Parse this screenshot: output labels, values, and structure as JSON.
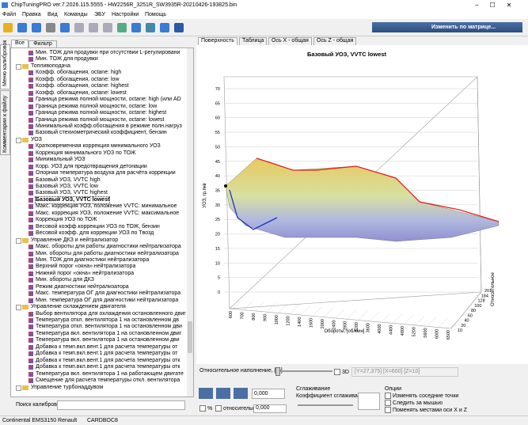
{
  "window": {
    "title": "ChipTuningPRO ver.7.2026.115.5555 - HW2256R_3251R_SW3935R-20210426-193825.bin"
  },
  "menu": [
    "Файл",
    "Правка",
    "Вид",
    "Команды",
    "ЭБУ",
    "Настройки",
    "Помощь"
  ],
  "toolbar": {
    "matrix_button": "Изменить по матрице..."
  },
  "left_panel": {
    "tabs": [
      "Все",
      "Фильтр"
    ],
    "side_tabs": [
      "Меню калибровок",
      "Комментарии к файлу"
    ],
    "tree": [
      {
        "items": [
          "Мин. ТОЖ для продувки при отсутствии L-регулировани",
          "Мин. ТОЖ для продувки"
        ]
      },
      {
        "label": "Топливоподача",
        "items": [
          "Коэфф. обогащения, octane: high",
          "Коэфф. обогащения, octane: low",
          "Коэфф. обогащения, octane: highest",
          "Коэфф. обогащения, octane: lowest",
          "Граница режима полной мощности, octane: high (или AD",
          "Граница режима полной мощности, octane: low",
          "Граница режима полной мощности, octane: highest",
          "Граница режима полной мощности, octane: lowest",
          "Минимальный коэфф.обогащения в режиме полн.нагруз",
          "Базовый стехиометрический коэффициент, бензин"
        ]
      },
      {
        "label": "УОЗ",
        "items": [
          "Кратковременная коррекция минимального УОЗ",
          "Коррекция минимального УОЗ по ТОЖ",
          "Минимальный УОЗ",
          "Корр. УОЗ для предотвращения детонации",
          "Опорная температура воздуха для расчёта коррекции",
          "Базовый УОЗ, VVTC high",
          "Базовый УОЗ, VVTC low",
          "Базовый УОЗ, VVTC highest",
          "Базовый УОЗ, VVTC lowest",
          "Макс. коррекция УОЗ, положение VVTC: минимальное",
          "Макс. коррекция УОЗ, положение VVTC: максимальное",
          "Коррекция УОЗ по ТОЖ",
          "Весовой коэфф.коррекции УОЗ по ТОЖ, бензин",
          "Весовой коэфф. для коррекции УОЗ по Tвозд"
        ]
      },
      {
        "label": "Управление ДКЗ и нейтрализатор",
        "items": [
          "Макс. обороты для работы диагностики нейтрализатора",
          "Мин. обороты для работы диагностики нейтрализатора",
          "Мин. ТОЖ для диагностики нейтрализатора",
          "Верхний порог «окна» нейтрализатора",
          "Нижний порог «окна» нейтрализатора",
          "Мин. обороты для ДКЗ",
          "Режим диагностики нейтрализатора",
          "Макс. температура ОГ для диагностики нейтрализатора",
          "Мин. температура ОГ для диагностики нейтрализатора"
        ]
      },
      {
        "label": "Управление охлаждением двигателя",
        "items": [
          "Выбор вентилятора для охлаждения остановленного двиг",
          "Температура откл. вентилятора 1 на остановленном дв",
          "Температура откл. вентилятора 1 на остановленном дви",
          "Температура вкл. вентилятора 1 на остановленном двиг",
          "Температура вкл. вентилятора 1 на остановленном дви",
          "Добавка к темп.вкл.вент.1 для расчета температуры от",
          "Добавка к темп.вкл.вент.1 для расчета температуры от",
          "Добавка к темп.вкл.вент.1 для расчета температуры отк",
          "Добавка к темп.вкл.вент.1 для расчета температуры отк",
          "Температура вкл. вентилятора 1 на работающем двигате",
          "Смещение для расчета температуры откл. вентилятора"
        ]
      },
      {
        "label": "Управление турбонаддувом",
        "items": []
      }
    ],
    "selected": "Базовый УОЗ, VVTC lowest",
    "search_label": "Поиск калибровки"
  },
  "chart": {
    "tabs": [
      "Поверхность",
      "Таблица",
      "Ось X - общая",
      "Ось Z - общая"
    ],
    "title": "Базовый УОЗ, VVTC lowest",
    "y_label": "УОЗ, гр.пкв",
    "yticks": [
      0,
      5,
      10,
      15,
      20,
      25,
      30,
      35,
      40,
      45,
      50,
      55,
      60,
      65,
      70
    ],
    "x_label": "Обороты, [об/мин]",
    "xticks": [
      600,
      700,
      800,
      900,
      1000,
      1200,
      1400,
      1600,
      2000,
      2400,
      2800,
      3200,
      3600,
      4000,
      4400,
      4800,
      5200,
      5600,
      6000,
      6500
    ],
    "z_label": "Относительное",
    "zticks": [
      10,
      20,
      40,
      60,
      80,
      100,
      128,
      184,
      201
    ]
  },
  "controls": {
    "axis_label": "Относительное наполнение, [%]",
    "mode_3d": "3D",
    "coords": "[Y=27,375] [X=600] [Z=10]",
    "value_1": "0,000",
    "percent": "%",
    "relative": "относительно",
    "value_2": "0,000",
    "smoothing": "Сглаживание",
    "smoothing_coef": "Коэффициент сглаживания",
    "options": "Опции",
    "opt_neighbors": "Изменять соседние точки",
    "opt_follow": "Следить за мышью",
    "opt_swap": "Поменять местами оси X и Z"
  },
  "status": {
    "ecu": "Continental EMS3150 Renault",
    "id": "CARDBOC8"
  }
}
